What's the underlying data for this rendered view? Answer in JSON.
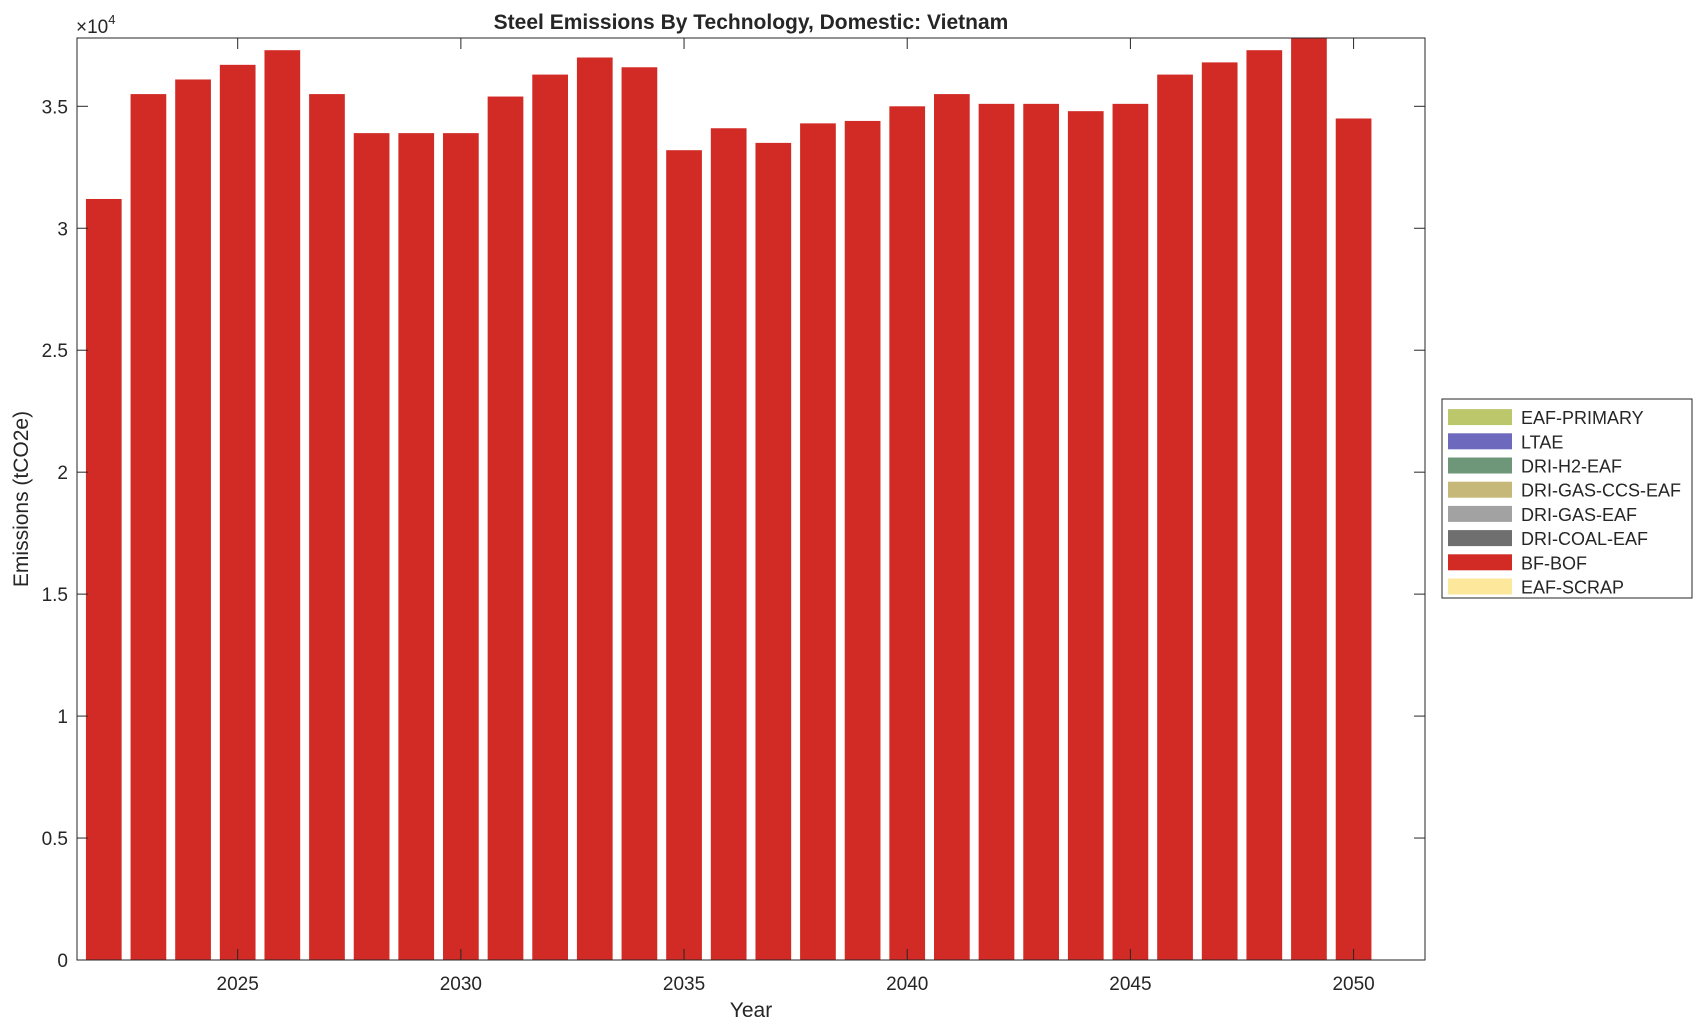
{
  "chart_data": {
    "type": "bar",
    "stacked": true,
    "title": "Steel Emissions By Technology, Domestic: Vietnam",
    "xlabel": "Year",
    "ylabel": "Emissions (tCO2e)",
    "y_exponent_label": "×10",
    "y_exponent_power": "4",
    "ylim": [
      0,
      3.78
    ],
    "xlim": [
      2021.4,
      2051.6
    ],
    "x_ticks": [
      2025,
      2030,
      2035,
      2040,
      2045,
      2050
    ],
    "x_tick_labels": [
      "2025",
      "2030",
      "2035",
      "2040",
      "2045",
      "2050"
    ],
    "y_ticks": [
      0,
      0.5,
      1,
      1.5,
      2,
      2.5,
      3,
      3.5
    ],
    "y_tick_labels": [
      "0",
      "0.5",
      "1",
      "1.5",
      "2",
      "2.5",
      "3",
      "3.5"
    ],
    "categories": [
      2022,
      2023,
      2024,
      2025,
      2026,
      2027,
      2028,
      2029,
      2030,
      2031,
      2032,
      2033,
      2034,
      2035,
      2036,
      2037,
      2038,
      2039,
      2040,
      2041,
      2042,
      2043,
      2044,
      2045,
      2046,
      2047,
      2048,
      2049,
      2050
    ],
    "series": [
      {
        "name": "EAF-PRIMARY",
        "color": "#bcc66b",
        "values": [
          0,
          0,
          0,
          0,
          0,
          0,
          0,
          0,
          0,
          0,
          0,
          0,
          0,
          0,
          0,
          0,
          0,
          0,
          0,
          0,
          0,
          0,
          0,
          0,
          0,
          0,
          0,
          0,
          0
        ]
      },
      {
        "name": "LTAE",
        "color": "#6d69bd",
        "values": [
          0,
          0,
          0,
          0,
          0,
          0,
          0,
          0,
          0,
          0,
          0,
          0,
          0,
          0,
          0,
          0,
          0,
          0,
          0,
          0,
          0,
          0,
          0,
          0,
          0,
          0,
          0,
          0,
          0
        ]
      },
      {
        "name": "DRI-H2-EAF",
        "color": "#6e977a",
        "values": [
          0,
          0,
          0,
          0,
          0,
          0,
          0,
          0,
          0,
          0,
          0,
          0,
          0,
          0,
          0,
          0,
          0,
          0,
          0,
          0,
          0,
          0,
          0,
          0,
          0,
          0,
          0,
          0,
          0
        ]
      },
      {
        "name": "DRI-GAS-CCS-EAF",
        "color": "#c5b879",
        "values": [
          0,
          0,
          0,
          0,
          0,
          0,
          0,
          0,
          0,
          0,
          0,
          0,
          0,
          0,
          0,
          0,
          0,
          0,
          0,
          0,
          0,
          0,
          0,
          0,
          0,
          0,
          0,
          0,
          0
        ]
      },
      {
        "name": "DRI-GAS-EAF",
        "color": "#a2a2a2",
        "values": [
          0,
          0,
          0,
          0,
          0,
          0,
          0,
          0,
          0,
          0,
          0,
          0,
          0,
          0,
          0,
          0,
          0,
          0,
          0,
          0,
          0,
          0,
          0,
          0,
          0,
          0,
          0,
          0,
          0
        ]
      },
      {
        "name": "DRI-COAL-EAF",
        "color": "#6f6f6f",
        "values": [
          0,
          0,
          0,
          0,
          0,
          0,
          0,
          0,
          0,
          0,
          0,
          0,
          0,
          0,
          0,
          0,
          0,
          0,
          0,
          0,
          0,
          0,
          0,
          0,
          0,
          0,
          0,
          0,
          0
        ]
      },
      {
        "name": "BF-BOF",
        "color": "#d22a25",
        "values": [
          3.12,
          3.55,
          3.61,
          3.67,
          3.73,
          3.55,
          3.39,
          3.39,
          3.39,
          3.54,
          3.63,
          3.7,
          3.66,
          3.32,
          3.41,
          3.35,
          3.43,
          3.44,
          3.5,
          3.55,
          3.51,
          3.51,
          3.48,
          3.51,
          3.63,
          3.68,
          3.73,
          3.78,
          3.45
        ]
      },
      {
        "name": "EAF-SCRAP",
        "color": "#fde79a",
        "values": [
          0,
          0,
          0,
          0,
          0,
          0,
          0,
          0,
          0,
          0,
          0,
          0,
          0,
          0,
          0,
          0,
          0,
          0,
          0,
          0,
          0,
          0,
          0,
          0,
          0,
          0,
          0,
          0,
          0
        ]
      }
    ],
    "grid": false,
    "legend_position": "right"
  }
}
